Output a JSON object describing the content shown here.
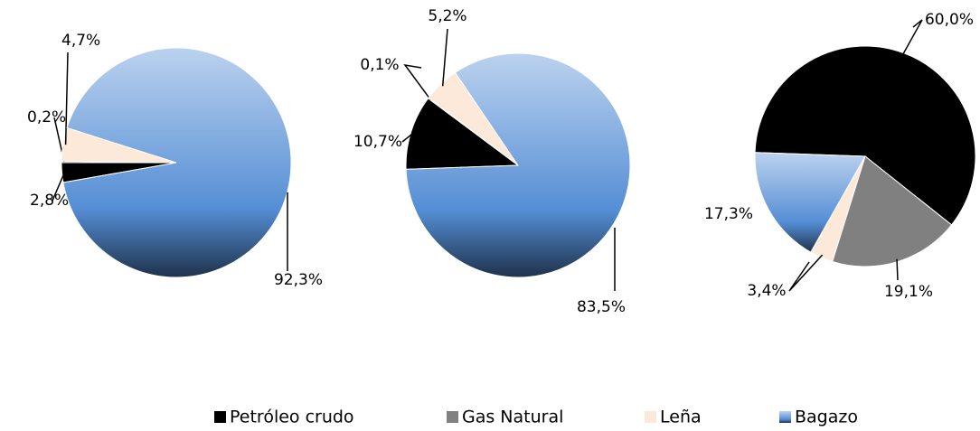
{
  "chart_data": [
    {
      "type": "pie",
      "categories": [
        "Petróleo crudo",
        "Gas Natural",
        "Leña",
        "Bagazo"
      ],
      "colors": [
        "#000000",
        "#808080",
        "#fde9d9",
        "#558ed5"
      ],
      "legend": "bottom",
      "values": [
        2.8,
        0.2,
        4.7,
        92.3
      ],
      "value_labels": [
        "2,8%",
        "0,2%",
        "4,7%",
        "92,3%"
      ]
    },
    {
      "type": "pie",
      "values": [
        10.7,
        0.1,
        5.2,
        83.5
      ],
      "value_labels": [
        "10,7%",
        "0,1%",
        "5,2%",
        "83,5%"
      ]
    },
    {
      "type": "pie",
      "values": [
        60.0,
        19.1,
        3.4,
        17.3
      ],
      "value_labels": [
        "60,0%",
        "19,1%",
        "3,4%",
        "17,3%"
      ]
    }
  ]
}
